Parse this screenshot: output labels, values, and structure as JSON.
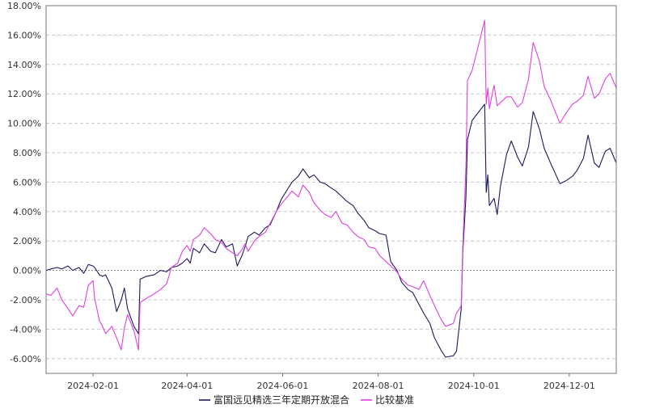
{
  "chart_data": {
    "type": "line",
    "title": "",
    "xlabel": "",
    "ylabel": "",
    "ylim": [
      -7,
      18
    ],
    "y_ticks": [
      -6,
      -4,
      -2,
      0,
      2,
      4,
      6,
      8,
      10,
      12,
      14,
      16,
      18
    ],
    "y_tick_labels": [
      "-6.00%",
      "-4.00%",
      "-2.00%",
      "0.00%",
      "2.00%",
      "4.00%",
      "6.00%",
      "8.00%",
      "10.00%",
      "12.00%",
      "14.00%",
      "16.00%",
      "18.00%"
    ],
    "x_range": [
      "2024-01-02",
      "2024-12-31"
    ],
    "x_ticks": [
      "2024-02-01",
      "2024-04-01",
      "2024-06-01",
      "2024-08-01",
      "2024-10-01",
      "2024-12-01"
    ],
    "x_tick_labels": [
      "2024-02-01",
      "2024-04-01",
      "2024-06-01",
      "2024-08-01",
      "2024-10-01",
      "2024-12-01"
    ],
    "grid": true,
    "legend_position": "bottom-center",
    "series": [
      {
        "name": "富国远见精选三年定期开放混合",
        "color": "#1a1a5e",
        "points": [
          [
            "2024-01-02",
            0.0
          ],
          [
            "2024-01-05",
            0.1
          ],
          [
            "2024-01-09",
            0.2
          ],
          [
            "2024-01-12",
            0.1
          ],
          [
            "2024-01-16",
            0.3
          ],
          [
            "2024-01-19",
            0.0
          ],
          [
            "2024-01-23",
            0.2
          ],
          [
            "2024-01-26",
            -0.2
          ],
          [
            "2024-01-29",
            0.4
          ],
          [
            "2024-02-01",
            0.3
          ],
          [
            "2024-02-02",
            0.2
          ],
          [
            "2024-02-05",
            -0.3
          ],
          [
            "2024-02-07",
            -0.4
          ],
          [
            "2024-02-09",
            -0.3
          ],
          [
            "2024-02-13",
            -1.2
          ],
          [
            "2024-02-16",
            -2.8
          ],
          [
            "2024-02-19",
            -2.0
          ],
          [
            "2024-02-21",
            -1.2
          ],
          [
            "2024-02-23",
            -2.6
          ],
          [
            "2024-02-27",
            -3.8
          ],
          [
            "2024-03-01",
            -4.3
          ],
          [
            "2024-03-02",
            -0.6
          ],
          [
            "2024-03-06",
            -0.4
          ],
          [
            "2024-03-11",
            -0.3
          ],
          [
            "2024-03-15",
            0.0
          ],
          [
            "2024-03-19",
            -0.1
          ],
          [
            "2024-03-22",
            0.2
          ],
          [
            "2024-03-26",
            0.3
          ],
          [
            "2024-03-29",
            0.5
          ],
          [
            "2024-04-01",
            0.8
          ],
          [
            "2024-04-03",
            0.5
          ],
          [
            "2024-04-05",
            1.5
          ],
          [
            "2024-04-09",
            1.2
          ],
          [
            "2024-04-12",
            1.8
          ],
          [
            "2024-04-16",
            1.3
          ],
          [
            "2024-04-19",
            1.2
          ],
          [
            "2024-04-23",
            2.1
          ],
          [
            "2024-04-26",
            1.6
          ],
          [
            "2024-04-30",
            1.8
          ],
          [
            "2024-05-03",
            0.3
          ],
          [
            "2024-05-06",
            1.0
          ],
          [
            "2024-05-08",
            1.6
          ],
          [
            "2024-05-10",
            2.3
          ],
          [
            "2024-05-14",
            2.6
          ],
          [
            "2024-05-17",
            2.4
          ],
          [
            "2024-05-21",
            2.9
          ],
          [
            "2024-05-24",
            3.1
          ],
          [
            "2024-05-28",
            4.0
          ],
          [
            "2024-05-31",
            4.8
          ],
          [
            "2024-06-04",
            5.5
          ],
          [
            "2024-06-07",
            6.0
          ],
          [
            "2024-06-11",
            6.4
          ],
          [
            "2024-06-14",
            6.9
          ],
          [
            "2024-06-18",
            6.3
          ],
          [
            "2024-06-21",
            6.5
          ],
          [
            "2024-06-25",
            6.0
          ],
          [
            "2024-06-28",
            5.9
          ],
          [
            "2024-07-02",
            5.6
          ],
          [
            "2024-07-05",
            5.4
          ],
          [
            "2024-07-09",
            5.0
          ],
          [
            "2024-07-12",
            4.7
          ],
          [
            "2024-07-16",
            4.4
          ],
          [
            "2024-07-19",
            3.9
          ],
          [
            "2024-07-23",
            3.4
          ],
          [
            "2024-07-26",
            2.9
          ],
          [
            "2024-07-30",
            2.7
          ],
          [
            "2024-08-02",
            2.5
          ],
          [
            "2024-08-06",
            2.4
          ],
          [
            "2024-08-09",
            0.6
          ],
          [
            "2024-08-13",
            0.0
          ],
          [
            "2024-08-16",
            -0.8
          ],
          [
            "2024-08-20",
            -1.3
          ],
          [
            "2024-08-23",
            -1.5
          ],
          [
            "2024-08-27",
            -2.3
          ],
          [
            "2024-08-30",
            -2.9
          ],
          [
            "2024-09-03",
            -3.6
          ],
          [
            "2024-09-06",
            -4.6
          ],
          [
            "2024-09-10",
            -5.4
          ],
          [
            "2024-09-13",
            -5.9
          ],
          [
            "2024-09-18",
            -5.8
          ],
          [
            "2024-09-20",
            -5.5
          ],
          [
            "2024-09-23",
            -2.6
          ],
          [
            "2024-09-24",
            1.2
          ],
          [
            "2024-09-26",
            5.0
          ],
          [
            "2024-09-27",
            8.9
          ],
          [
            "2024-09-30",
            10.2
          ],
          [
            "2024-10-08",
            11.3
          ],
          [
            "2024-10-09",
            5.3
          ],
          [
            "2024-10-10",
            6.5
          ],
          [
            "2024-10-11",
            4.4
          ],
          [
            "2024-10-14",
            4.9
          ],
          [
            "2024-10-16",
            3.8
          ],
          [
            "2024-10-18",
            5.7
          ],
          [
            "2024-10-22",
            7.9
          ],
          [
            "2024-10-25",
            8.8
          ],
          [
            "2024-10-29",
            7.7
          ],
          [
            "2024-11-01",
            7.1
          ],
          [
            "2024-11-05",
            8.4
          ],
          [
            "2024-11-08",
            10.8
          ],
          [
            "2024-11-12",
            9.6
          ],
          [
            "2024-11-15",
            8.3
          ],
          [
            "2024-11-19",
            7.3
          ],
          [
            "2024-11-22",
            6.6
          ],
          [
            "2024-11-25",
            5.9
          ],
          [
            "2024-11-29",
            6.1
          ],
          [
            "2024-12-03",
            6.4
          ],
          [
            "2024-12-06",
            6.8
          ],
          [
            "2024-12-10",
            7.6
          ],
          [
            "2024-12-13",
            9.2
          ],
          [
            "2024-12-17",
            7.3
          ],
          [
            "2024-12-20",
            7.0
          ],
          [
            "2024-12-24",
            8.1
          ],
          [
            "2024-12-27",
            8.3
          ],
          [
            "2024-12-31",
            7.3
          ]
        ]
      },
      {
        "name": "比较基准",
        "color": "#e040e0",
        "points": [
          [
            "2024-01-02",
            -1.6
          ],
          [
            "2024-01-05",
            -1.7
          ],
          [
            "2024-01-09",
            -1.2
          ],
          [
            "2024-01-12",
            -2.0
          ],
          [
            "2024-01-16",
            -2.6
          ],
          [
            "2024-01-19",
            -3.1
          ],
          [
            "2024-01-23",
            -2.4
          ],
          [
            "2024-01-26",
            -2.5
          ],
          [
            "2024-01-29",
            -1.0
          ],
          [
            "2024-02-01",
            -0.7
          ],
          [
            "2024-02-02",
            -1.9
          ],
          [
            "2024-02-05",
            -3.4
          ],
          [
            "2024-02-07",
            -3.8
          ],
          [
            "2024-02-09",
            -4.3
          ],
          [
            "2024-02-13",
            -3.8
          ],
          [
            "2024-02-16",
            -4.6
          ],
          [
            "2024-02-19",
            -5.4
          ],
          [
            "2024-02-21",
            -3.9
          ],
          [
            "2024-02-23",
            -3.0
          ],
          [
            "2024-02-27",
            -4.1
          ],
          [
            "2024-03-01",
            -5.4
          ],
          [
            "2024-03-02",
            -2.2
          ],
          [
            "2024-03-06",
            -1.9
          ],
          [
            "2024-03-11",
            -1.6
          ],
          [
            "2024-03-15",
            -1.3
          ],
          [
            "2024-03-19",
            -0.9
          ],
          [
            "2024-03-22",
            0.2
          ],
          [
            "2024-03-26",
            0.5
          ],
          [
            "2024-03-29",
            1.3
          ],
          [
            "2024-04-01",
            1.7
          ],
          [
            "2024-04-03",
            1.3
          ],
          [
            "2024-04-05",
            2.1
          ],
          [
            "2024-04-09",
            2.4
          ],
          [
            "2024-04-12",
            2.9
          ],
          [
            "2024-04-16",
            2.5
          ],
          [
            "2024-04-19",
            2.1
          ],
          [
            "2024-04-23",
            1.9
          ],
          [
            "2024-04-26",
            1.5
          ],
          [
            "2024-04-30",
            1.2
          ],
          [
            "2024-05-03",
            1.0
          ],
          [
            "2024-05-06",
            1.4
          ],
          [
            "2024-05-08",
            1.8
          ],
          [
            "2024-05-10",
            1.3
          ],
          [
            "2024-05-14",
            2.0
          ],
          [
            "2024-05-17",
            2.3
          ],
          [
            "2024-05-21",
            2.6
          ],
          [
            "2024-05-24",
            3.2
          ],
          [
            "2024-05-28",
            4.0
          ],
          [
            "2024-05-31",
            4.5
          ],
          [
            "2024-06-04",
            5.0
          ],
          [
            "2024-06-07",
            5.4
          ],
          [
            "2024-06-11",
            5.0
          ],
          [
            "2024-06-14",
            5.8
          ],
          [
            "2024-06-18",
            5.3
          ],
          [
            "2024-06-21",
            4.6
          ],
          [
            "2024-06-25",
            4.1
          ],
          [
            "2024-06-28",
            3.8
          ],
          [
            "2024-07-02",
            3.6
          ],
          [
            "2024-07-05",
            4.0
          ],
          [
            "2024-07-09",
            3.2
          ],
          [
            "2024-07-12",
            3.1
          ],
          [
            "2024-07-16",
            2.6
          ],
          [
            "2024-07-19",
            2.3
          ],
          [
            "2024-07-23",
            2.1
          ],
          [
            "2024-07-26",
            1.6
          ],
          [
            "2024-07-30",
            1.5
          ],
          [
            "2024-08-02",
            1.0
          ],
          [
            "2024-08-06",
            0.6
          ],
          [
            "2024-08-09",
            0.3
          ],
          [
            "2024-08-13",
            -0.1
          ],
          [
            "2024-08-16",
            -0.6
          ],
          [
            "2024-08-20",
            -1.0
          ],
          [
            "2024-08-23",
            -1.1
          ],
          [
            "2024-08-27",
            -1.3
          ],
          [
            "2024-08-30",
            -0.7
          ],
          [
            "2024-09-03",
            -1.7
          ],
          [
            "2024-09-06",
            -2.4
          ],
          [
            "2024-09-10",
            -3.3
          ],
          [
            "2024-09-13",
            -3.8
          ],
          [
            "2024-09-18",
            -3.6
          ],
          [
            "2024-09-20",
            -2.9
          ],
          [
            "2024-09-23",
            -2.4
          ],
          [
            "2024-09-24",
            1.6
          ],
          [
            "2024-09-26",
            7.0
          ],
          [
            "2024-09-27",
            12.9
          ],
          [
            "2024-09-30",
            13.6
          ],
          [
            "2024-10-08",
            17.0
          ],
          [
            "2024-10-09",
            11.3
          ],
          [
            "2024-10-10",
            12.4
          ],
          [
            "2024-10-11",
            11.0
          ],
          [
            "2024-10-14",
            12.6
          ],
          [
            "2024-10-16",
            11.2
          ],
          [
            "2024-10-18",
            11.4
          ],
          [
            "2024-10-22",
            11.8
          ],
          [
            "2024-10-25",
            11.8
          ],
          [
            "2024-10-29",
            11.1
          ],
          [
            "2024-11-01",
            11.4
          ],
          [
            "2024-11-05",
            13.0
          ],
          [
            "2024-11-08",
            15.5
          ],
          [
            "2024-11-12",
            14.2
          ],
          [
            "2024-11-15",
            12.5
          ],
          [
            "2024-11-19",
            11.6
          ],
          [
            "2024-11-22",
            10.8
          ],
          [
            "2024-11-25",
            10.0
          ],
          [
            "2024-11-29",
            10.7
          ],
          [
            "2024-12-03",
            11.3
          ],
          [
            "2024-12-06",
            11.5
          ],
          [
            "2024-12-10",
            11.9
          ],
          [
            "2024-12-13",
            13.2
          ],
          [
            "2024-12-17",
            11.7
          ],
          [
            "2024-12-20",
            12.0
          ],
          [
            "2024-12-24",
            13.0
          ],
          [
            "2024-12-27",
            13.4
          ],
          [
            "2024-12-31",
            12.4
          ]
        ]
      }
    ]
  }
}
